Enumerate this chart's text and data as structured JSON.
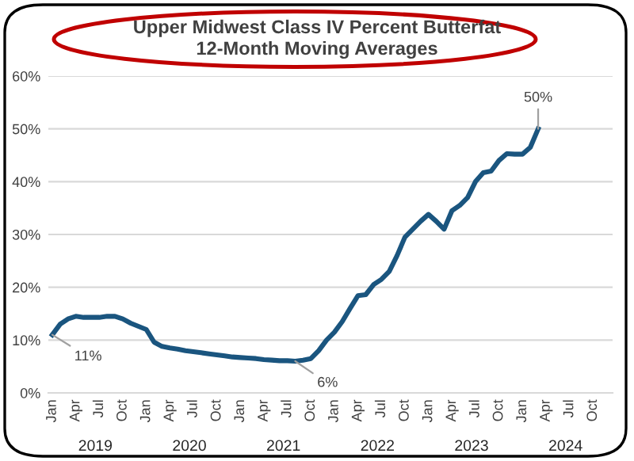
{
  "chart_data": {
    "type": "line",
    "title": "Upper Midwest Class IV Percent Butterfat\n12-Month Moving Averages",
    "categories": [
      "Jan",
      null,
      null,
      "Apr",
      null,
      null,
      "Jul",
      null,
      null,
      "Oct",
      null,
      null,
      "Jan",
      null,
      null,
      "Apr",
      null,
      null,
      "Jul",
      null,
      null,
      "Oct",
      null,
      null,
      "Jan",
      null,
      null,
      "Apr",
      null,
      null,
      "Jul",
      null,
      null,
      "Oct",
      null,
      null,
      "Jan",
      null,
      null,
      "Apr",
      null,
      null,
      "Jul",
      null,
      null,
      "Oct",
      null,
      null,
      "Jan",
      null,
      null,
      "Apr",
      null,
      null,
      "Jul",
      null,
      null,
      "Oct",
      null,
      null,
      "Jan",
      null,
      null,
      "Apr",
      null,
      null,
      "Jul",
      null,
      null,
      "Oct",
      null,
      null
    ],
    "series": [
      {
        "color": "#1a557f",
        "values": [
          11,
          13,
          14,
          14.5,
          14.3,
          14.3,
          14.3,
          14.5,
          14.5,
          14,
          13.2,
          12.6,
          12,
          9.6,
          8.8,
          8.5,
          8.3,
          8,
          7.8,
          7.6,
          7.4,
          7.2,
          7,
          6.8,
          6.7,
          6.6,
          6.5,
          6.3,
          6.2,
          6.1,
          6.1,
          6,
          6.2,
          6.5,
          8,
          10,
          11.5,
          13.5,
          16,
          18.4,
          18.6,
          20.5,
          21.5,
          23,
          26,
          29.5,
          31,
          32.5,
          33.8,
          32.5,
          31,
          34.5,
          35.5,
          37,
          40,
          41.7,
          42,
          44,
          45.3,
          45.2,
          45.2,
          46.5,
          50,
          null,
          null,
          null,
          null,
          null,
          null,
          null,
          null,
          null
        ],
        "value_labels": [
          "11%",
          null,
          null,
          null,
          null,
          null,
          null,
          null,
          null,
          null,
          null,
          null,
          null,
          null,
          null,
          null,
          null,
          null,
          null,
          null,
          null,
          null,
          null,
          null,
          null,
          null,
          null,
          null,
          null,
          null,
          null,
          "6%",
          null,
          null,
          null,
          null,
          null,
          null,
          null,
          null,
          null,
          null,
          null,
          null,
          null,
          null,
          null,
          null,
          null,
          null,
          null,
          null,
          null,
          null,
          null,
          null,
          null,
          null,
          null,
          null,
          null,
          null,
          "50%",
          null,
          null,
          null,
          null,
          null,
          null,
          null,
          null,
          null
        ]
      }
    ],
    "ylim": [
      0,
      60
    ],
    "yticks": [
      {
        "value": 0,
        "label": "0%"
      },
      {
        "value": 10,
        "label": "10%"
      },
      {
        "value": 20,
        "label": "20%"
      },
      {
        "value": 30,
        "label": "30%"
      },
      {
        "value": 40,
        "label": "40%"
      },
      {
        "value": 50,
        "label": "50%"
      },
      {
        "value": 60,
        "label": "60%"
      }
    ],
    "grid": "y",
    "legend": false,
    "marker": "none",
    "line_style": "solid",
    "annotations": [
      "2019",
      "2020",
      "2021",
      "2022",
      "2023",
      "2024"
    ]
  }
}
